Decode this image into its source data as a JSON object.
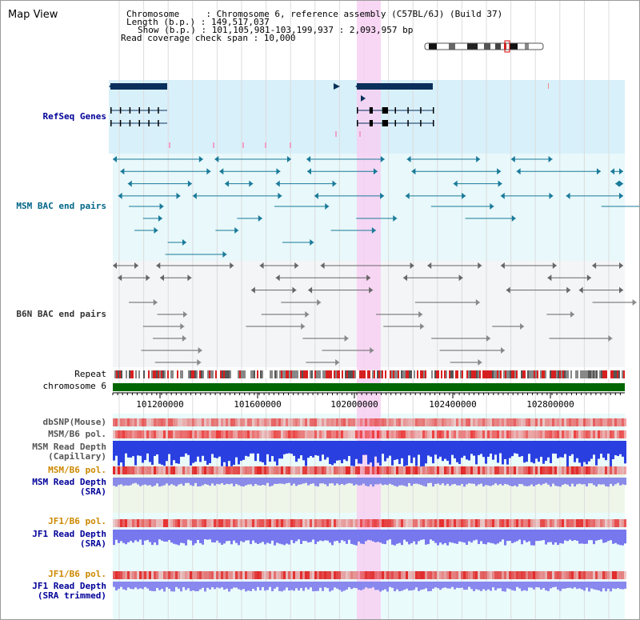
{
  "title": "Map View",
  "header": {
    "chromosome": "Chromosome     : Chromosome 6, reference assembly (C57BL/6J) (Build 37)",
    "length": "Length (b.p.) : 149,517,037",
    "show": "Show (b.p.) : 101,105,981-103,199,937 : 2,093,957 bp",
    "read_span": "Read coverage check span : 10,000"
  },
  "tracks": {
    "refseq": "RefSeq Genes",
    "msm_bac": "MSM BAC end pairs",
    "b6n_bac": "B6N BAC end pairs",
    "repeat": "Repeat",
    "chromosome": "chromosome 6",
    "dbsnp": "dbSNP(Mouse)",
    "msm_b6_pol_1": "MSM/B6 pol.",
    "msm_depth_cap_1": "MSM Read Depth",
    "msm_depth_cap_2": "(Capillary)",
    "msm_b6_pol_2": "MSM/B6 pol.",
    "msm_depth_sra_1": "MSM Read Depth",
    "msm_depth_sra_2": "(SRA)",
    "jf1_b6_pol_1": "JF1/B6 pol.",
    "jf1_depth_sra_1": "JF1 Read Depth",
    "jf1_depth_sra_2": "(SRA)",
    "jf1_b6_pol_2": "JF1/B6 pol.",
    "jf1_depth_trim_1": "JF1 Read Depth",
    "jf1_depth_trim_2": "(SRA trimmed)"
  },
  "axis": {
    "ticks": [
      "101200000",
      "101600000",
      "102000000",
      "102400000",
      "102800000"
    ]
  },
  "colors": {
    "link_blue": "#000099",
    "msm_teal": "#006688",
    "b6n_gray": "#333333",
    "pol_orange": "#cc8800",
    "chrom_green": "#006600",
    "highlight_pink": "#f7d0f2"
  }
}
